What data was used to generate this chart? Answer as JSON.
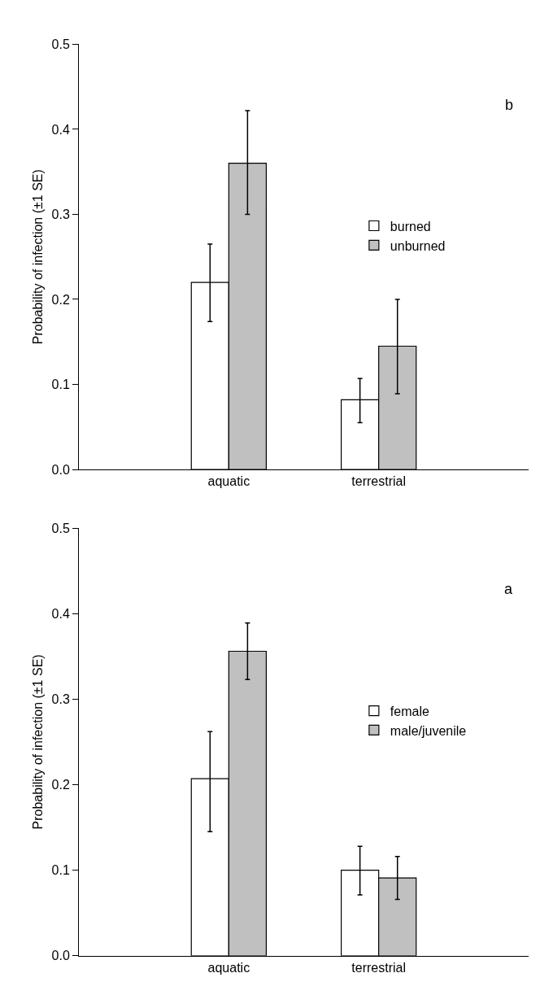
{
  "chart_data": [
    {
      "type": "bar",
      "categories": [
        "aquatic",
        "terrestrial"
      ],
      "ylabel": "Probability of infection (±1 SE)",
      "ylim": [
        0,
        0.5
      ],
      "yticks": [
        {
          "value": 0,
          "label": "0.0"
        },
        {
          "value": 0.1,
          "label": "0.1"
        },
        {
          "value": 0.2,
          "label": "0.2"
        },
        {
          "value": 0.3,
          "label": "0.3"
        },
        {
          "value": 0.4,
          "label": "0.4"
        },
        {
          "value": 0.5,
          "label": "0.5"
        }
      ],
      "legend": "right",
      "annotations": [
        "b"
      ],
      "series": [
        {
          "name": "burned",
          "color": "#ffffff",
          "values": [
            0.22,
            0.082
          ],
          "errors": [
            [
              0.174,
              0.265
            ],
            [
              0.055,
              0.107
            ]
          ]
        },
        {
          "name": "unburned",
          "color": "#c0c0c0",
          "values": [
            0.36,
            0.145
          ],
          "errors": [
            [
              0.3,
              0.422
            ],
            [
              0.089,
              0.2
            ]
          ]
        }
      ]
    },
    {
      "type": "bar",
      "categories": [
        "aquatic",
        "terrestrial"
      ],
      "ylabel": "Probability of infection (±1 SE)",
      "ylim": [
        0,
        0.5
      ],
      "yticks": [
        {
          "value": 0,
          "label": "0.0"
        },
        {
          "value": 0.1,
          "label": "0.1"
        },
        {
          "value": 0.2,
          "label": "0.2"
        },
        {
          "value": 0.3,
          "label": "0.3"
        },
        {
          "value": 0.4,
          "label": "0.4"
        },
        {
          "value": 0.5,
          "label": "0.5"
        }
      ],
      "legend": "right",
      "annotations": [
        "a"
      ],
      "series": [
        {
          "name": "female",
          "color": "#ffffff",
          "values": [
            0.207,
            0.1
          ],
          "errors": [
            [
              0.145,
              0.262
            ],
            [
              0.071,
              0.128
            ]
          ]
        },
        {
          "name": "male/juvenile",
          "color": "#c0c0c0",
          "values": [
            0.356,
            0.091
          ],
          "errors": [
            [
              0.323,
              0.389
            ],
            [
              0.066,
              0.116
            ]
          ]
        }
      ]
    }
  ]
}
